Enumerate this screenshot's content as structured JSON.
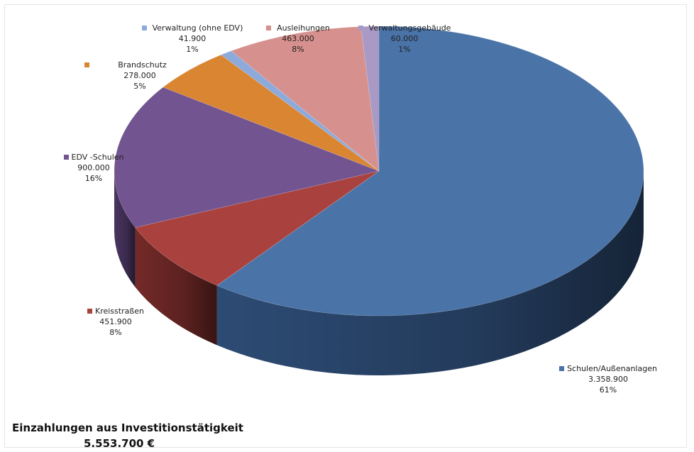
{
  "chart_data": {
    "type": "pie",
    "style": "3d",
    "categories": [
      "Schulen/Außenanlagen",
      "Kreisstraßen",
      "EDV -Schulen",
      "Brandschutz",
      "Verwaltung (ohne EDV)",
      "Ausleihungen",
      "Verwaltungsgebäude"
    ],
    "values": [
      3358900,
      451900,
      900000,
      278000,
      41900,
      463000,
      60000
    ],
    "value_labels": [
      "3.358.900",
      "451.900",
      "900.000",
      "278.000",
      "41.900",
      "463.000",
      "60.000"
    ],
    "percent_labels": [
      "61%",
      "8%",
      "16%",
      "5%",
      "1%",
      "8%",
      "1%"
    ],
    "colors": [
      "#4a73a8",
      "#a9423f",
      "#725490",
      "#d98532",
      "#8eaadb",
      "#d6908d",
      "#a89ac4"
    ],
    "side_colors": [
      "#2f4f7a",
      "#7a2c2a",
      "#4d3765",
      "#9c5c20",
      "#5f7aa6",
      "#9b6260",
      "#766a8e"
    ],
    "title": "",
    "legend": "labels beside slices"
  },
  "footer": {
    "title": "Einzahlungen aus Investitionstätigkeit",
    "total": "5.553.700 €"
  }
}
